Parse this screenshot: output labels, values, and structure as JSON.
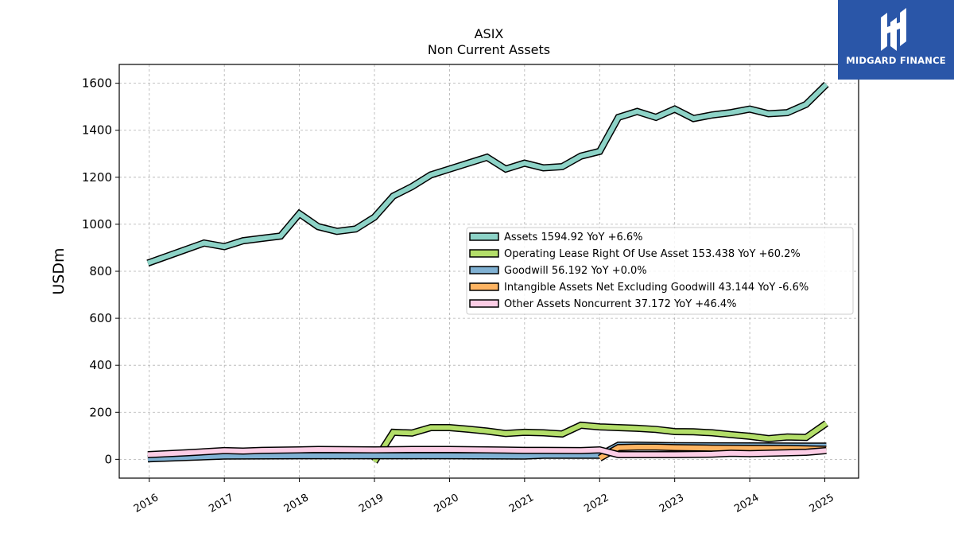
{
  "brand": {
    "name": "MIDGARD FINANCE",
    "bg_color": "#2a56a8"
  },
  "chart_data": {
    "type": "line",
    "title": "ASIX",
    "subtitle": "Non Current  Assets",
    "ylabel": "USDm",
    "xlabel": "",
    "ylim": [
      -80,
      1680
    ],
    "xlim": [
      2015.6,
      2025.45
    ],
    "yticks": [
      0,
      200,
      400,
      600,
      800,
      1000,
      1200,
      1400,
      1600
    ],
    "xticks": [
      "2016",
      "2017",
      "2018",
      "2019",
      "2020",
      "2021",
      "2022",
      "2023",
      "2024",
      "2025"
    ],
    "grid": true,
    "legend_position": "center-right",
    "series": [
      {
        "name": "Assets",
        "legend": "Assets  1594.92 YoY +6.6%",
        "color": "#8dd3c7",
        "points": [
          [
            2015.98,
            835
          ],
          [
            2016.73,
            920
          ],
          [
            2017.0,
            905
          ],
          [
            2017.25,
            930
          ],
          [
            2017.5,
            940
          ],
          [
            2017.75,
            950
          ],
          [
            2018.0,
            1045
          ],
          [
            2018.25,
            990
          ],
          [
            2018.5,
            970
          ],
          [
            2018.75,
            980
          ],
          [
            2019.0,
            1030
          ],
          [
            2019.25,
            1120
          ],
          [
            2019.5,
            1160
          ],
          [
            2019.75,
            1210
          ],
          [
            2020.0,
            1235
          ],
          [
            2020.25,
            1260
          ],
          [
            2020.5,
            1285
          ],
          [
            2020.75,
            1235
          ],
          [
            2021.0,
            1260
          ],
          [
            2021.25,
            1240
          ],
          [
            2021.5,
            1245
          ],
          [
            2021.75,
            1290
          ],
          [
            2022.0,
            1310
          ],
          [
            2022.25,
            1455
          ],
          [
            2022.5,
            1480
          ],
          [
            2022.75,
            1455
          ],
          [
            2023.0,
            1490
          ],
          [
            2023.25,
            1450
          ],
          [
            2023.5,
            1465
          ],
          [
            2023.75,
            1475
          ],
          [
            2024.0,
            1490
          ],
          [
            2024.25,
            1470
          ],
          [
            2024.5,
            1475
          ],
          [
            2024.75,
            1510
          ],
          [
            2025.02,
            1595
          ]
        ]
      },
      {
        "name": "Operating Lease Right Of Use Asset",
        "legend": "Operating Lease Right Of Use Asset  153.438 YoY +60.2%",
        "color": "#b3de69",
        "points": [
          [
            2019.0,
            -10
          ],
          [
            2019.25,
            115
          ],
          [
            2019.5,
            112
          ],
          [
            2019.75,
            135
          ],
          [
            2020.0,
            135
          ],
          [
            2020.25,
            128
          ],
          [
            2020.5,
            120
          ],
          [
            2020.75,
            110
          ],
          [
            2021.0,
            115
          ],
          [
            2021.25,
            113
          ],
          [
            2021.5,
            108
          ],
          [
            2021.75,
            145
          ],
          [
            2022.0,
            138
          ],
          [
            2022.25,
            135
          ],
          [
            2022.5,
            132
          ],
          [
            2022.75,
            127
          ],
          [
            2023.0,
            118
          ],
          [
            2023.25,
            117
          ],
          [
            2023.5,
            113
          ],
          [
            2023.75,
            105
          ],
          [
            2024.0,
            98
          ],
          [
            2024.25,
            88
          ],
          [
            2024.5,
            95
          ],
          [
            2024.75,
            93
          ],
          [
            2025.02,
            153
          ]
        ]
      },
      {
        "name": "Goodwill",
        "legend": "Goodwill  56.192 YoY +0.0%",
        "color": "#80b1d3",
        "points": [
          [
            2015.98,
            2
          ],
          [
            2017.0,
            14
          ],
          [
            2018.0,
            15
          ],
          [
            2019.0,
            15
          ],
          [
            2020.0,
            15
          ],
          [
            2021.0,
            14
          ],
          [
            2021.25,
            17
          ],
          [
            2022.0,
            17
          ],
          [
            2022.25,
            60
          ],
          [
            2022.5,
            60
          ],
          [
            2023.0,
            58
          ],
          [
            2024.0,
            57
          ],
          [
            2025.02,
            56
          ]
        ]
      },
      {
        "name": "Intangible Assets Net Excluding Goodwill",
        "legend": "Intangible Assets Net Excluding Goodwill  43.144 YoY -6.6%",
        "color": "#fdb462",
        "points": [
          [
            2022.0,
            5
          ],
          [
            2022.25,
            50
          ],
          [
            2022.5,
            52
          ],
          [
            2022.75,
            52
          ],
          [
            2023.0,
            50
          ],
          [
            2023.5,
            48
          ],
          [
            2024.0,
            47
          ],
          [
            2024.5,
            46
          ],
          [
            2025.02,
            43
          ]
        ]
      },
      {
        "name": "Other Assets Noncurrent",
        "legend": "Other Assets Noncurrent  37.172 YoY +46.4%",
        "color": "#fccde5",
        "points": [
          [
            2015.98,
            20
          ],
          [
            2016.5,
            28
          ],
          [
            2017.0,
            37
          ],
          [
            2017.25,
            35
          ],
          [
            2017.5,
            38
          ],
          [
            2018.0,
            40
          ],
          [
            2018.25,
            42
          ],
          [
            2019.0,
            40
          ],
          [
            2019.5,
            42
          ],
          [
            2020.0,
            42
          ],
          [
            2020.5,
            40
          ],
          [
            2021.0,
            38
          ],
          [
            2021.25,
            38
          ],
          [
            2021.75,
            37
          ],
          [
            2022.0,
            40
          ],
          [
            2022.25,
            20
          ],
          [
            2022.75,
            20
          ],
          [
            2023.0,
            20
          ],
          [
            2023.5,
            22
          ],
          [
            2023.75,
            26
          ],
          [
            2024.0,
            24
          ],
          [
            2024.5,
            28
          ],
          [
            2024.75,
            30
          ],
          [
            2025.02,
            37
          ]
        ]
      }
    ]
  }
}
